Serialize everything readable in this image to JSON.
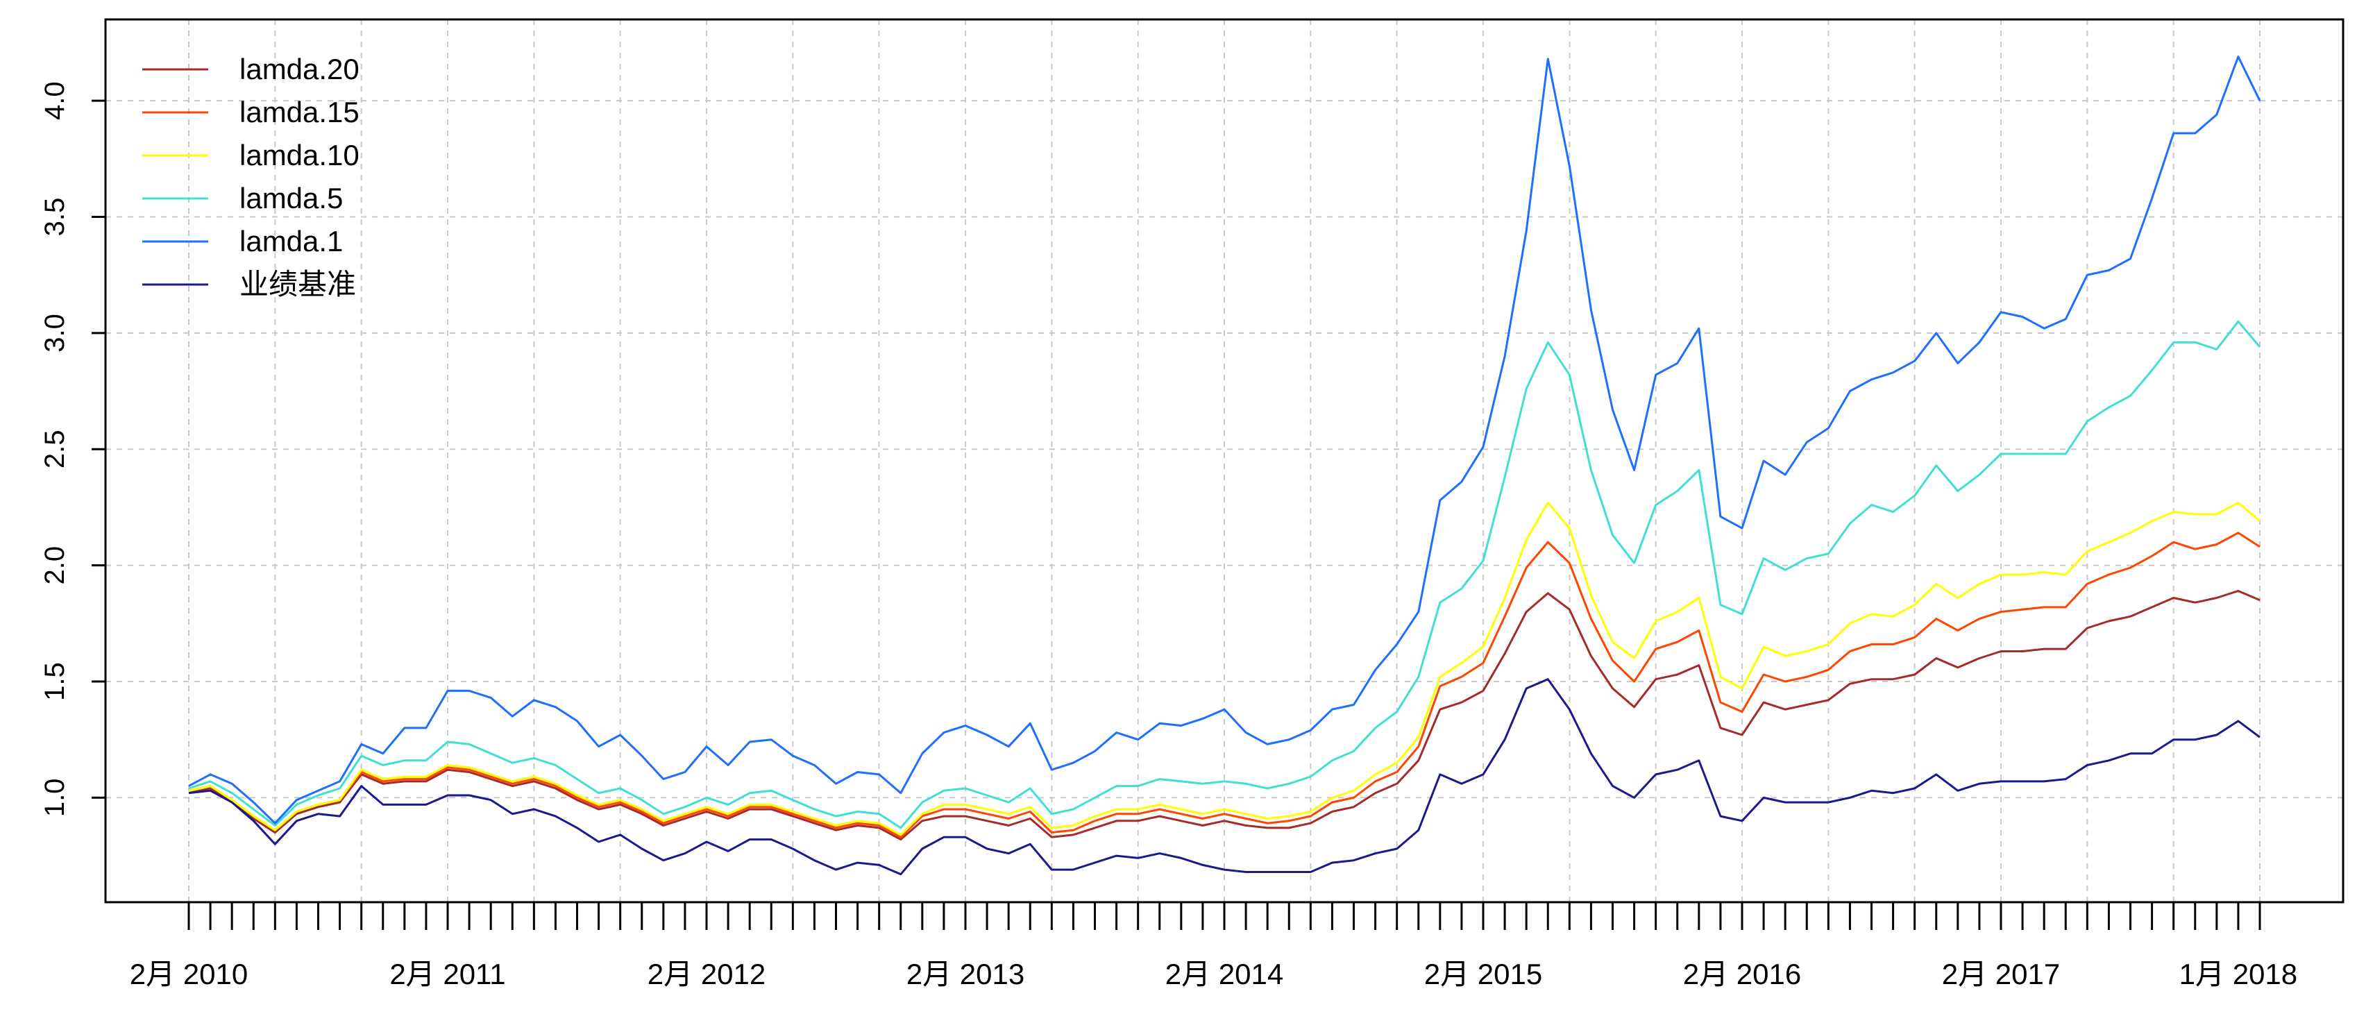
{
  "chart_data": {
    "type": "line",
    "title": "",
    "xlabel": "",
    "ylabel": "",
    "ylim": [
      0.55,
      4.35
    ],
    "y_ticks": [
      1.0,
      1.5,
      2.0,
      2.5,
      3.0,
      3.5,
      4.0
    ],
    "y_tick_labels": [
      "1.0",
      "1.5",
      "2.0",
      "2.5",
      "3.0",
      "3.5",
      "4.0"
    ],
    "x_tick_labels": [
      {
        "label": "2月 2010",
        "index": 0
      },
      {
        "label": "2月 2011",
        "index": 12
      },
      {
        "label": "2月 2012",
        "index": 24
      },
      {
        "label": "2月 2013",
        "index": 36
      },
      {
        "label": "2月 2014",
        "index": 48
      },
      {
        "label": "2月 2015",
        "index": 60
      },
      {
        "label": "2月 2016",
        "index": 72
      },
      {
        "label": "2月 2017",
        "index": 84
      },
      {
        "label": "1月 2018",
        "index": 95
      }
    ],
    "n_points": 97,
    "grid": true,
    "legend_position": "top-left",
    "series": [
      {
        "name": "lamda.20",
        "color": "#A52A2A",
        "values": [
          1.02,
          1.04,
          0.98,
          0.91,
          0.85,
          0.93,
          0.96,
          0.98,
          1.1,
          1.06,
          1.07,
          1.07,
          1.12,
          1.11,
          1.08,
          1.05,
          1.07,
          1.04,
          0.99,
          0.95,
          0.97,
          0.93,
          0.88,
          0.91,
          0.94,
          0.91,
          0.95,
          0.95,
          0.92,
          0.89,
          0.86,
          0.88,
          0.87,
          0.82,
          0.9,
          0.92,
          0.92,
          0.9,
          0.88,
          0.91,
          0.83,
          0.84,
          0.87,
          0.9,
          0.9,
          0.92,
          0.9,
          0.88,
          0.9,
          0.88,
          0.87,
          0.87,
          0.89,
          0.94,
          0.96,
          1.02,
          1.06,
          1.16,
          1.38,
          1.41,
          1.46,
          1.62,
          1.8,
          1.88,
          1.81,
          1.61,
          1.47,
          1.39,
          1.51,
          1.53,
          1.57,
          1.3,
          1.27,
          1.41,
          1.38,
          1.4,
          1.42,
          1.49,
          1.51,
          1.51,
          1.53,
          1.6,
          1.56,
          1.6,
          1.63,
          1.63,
          1.64,
          1.64,
          1.73,
          1.76,
          1.78,
          1.82,
          1.86,
          1.84,
          1.86,
          1.89,
          1.85
        ]
      },
      {
        "name": "lamda.15",
        "color": "#FF4500",
        "values": [
          1.03,
          1.05,
          0.99,
          0.92,
          0.86,
          0.94,
          0.97,
          0.99,
          1.11,
          1.07,
          1.08,
          1.08,
          1.13,
          1.12,
          1.09,
          1.06,
          1.08,
          1.05,
          1.0,
          0.96,
          0.98,
          0.94,
          0.89,
          0.92,
          0.95,
          0.92,
          0.96,
          0.96,
          0.93,
          0.9,
          0.87,
          0.89,
          0.88,
          0.83,
          0.92,
          0.95,
          0.95,
          0.93,
          0.91,
          0.94,
          0.85,
          0.86,
          0.9,
          0.93,
          0.93,
          0.95,
          0.93,
          0.91,
          0.93,
          0.91,
          0.89,
          0.9,
          0.92,
          0.98,
          1.0,
          1.07,
          1.11,
          1.22,
          1.48,
          1.52,
          1.58,
          1.78,
          1.99,
          2.1,
          2.01,
          1.77,
          1.59,
          1.5,
          1.64,
          1.67,
          1.72,
          1.41,
          1.37,
          1.53,
          1.5,
          1.52,
          1.55,
          1.63,
          1.66,
          1.66,
          1.69,
          1.77,
          1.72,
          1.77,
          1.8,
          1.81,
          1.82,
          1.82,
          1.92,
          1.96,
          1.99,
          2.04,
          2.1,
          2.07,
          2.09,
          2.14,
          2.08
        ]
      },
      {
        "name": "lamda.10",
        "color": "#FFFF00",
        "values": [
          1.03,
          1.05,
          0.99,
          0.92,
          0.86,
          0.94,
          0.97,
          0.99,
          1.12,
          1.08,
          1.09,
          1.09,
          1.14,
          1.13,
          1.1,
          1.07,
          1.09,
          1.06,
          1.01,
          0.97,
          0.99,
          0.95,
          0.9,
          0.93,
          0.96,
          0.93,
          0.97,
          0.97,
          0.94,
          0.91,
          0.88,
          0.9,
          0.89,
          0.84,
          0.93,
          0.97,
          0.97,
          0.95,
          0.93,
          0.96,
          0.87,
          0.88,
          0.92,
          0.95,
          0.95,
          0.97,
          0.95,
          0.93,
          0.95,
          0.93,
          0.91,
          0.92,
          0.94,
          1.0,
          1.03,
          1.1,
          1.15,
          1.26,
          1.52,
          1.58,
          1.65,
          1.86,
          2.11,
          2.27,
          2.16,
          1.87,
          1.67,
          1.6,
          1.76,
          1.8,
          1.86,
          1.52,
          1.47,
          1.65,
          1.61,
          1.63,
          1.66,
          1.75,
          1.79,
          1.78,
          1.83,
          1.92,
          1.86,
          1.92,
          1.96,
          1.96,
          1.97,
          1.96,
          2.06,
          2.1,
          2.14,
          2.19,
          2.23,
          2.22,
          2.22,
          2.27,
          2.19
        ]
      },
      {
        "name": "lamda.5",
        "color": "#40E0D0",
        "values": [
          1.04,
          1.07,
          1.02,
          0.95,
          0.88,
          0.97,
          1.01,
          1.04,
          1.18,
          1.14,
          1.16,
          1.16,
          1.24,
          1.23,
          1.19,
          1.15,
          1.17,
          1.14,
          1.08,
          1.02,
          1.04,
          0.99,
          0.93,
          0.96,
          1.0,
          0.97,
          1.02,
          1.03,
          0.99,
          0.95,
          0.92,
          0.94,
          0.93,
          0.87,
          0.98,
          1.03,
          1.04,
          1.01,
          0.98,
          1.04,
          0.93,
          0.95,
          1.0,
          1.05,
          1.05,
          1.08,
          1.07,
          1.06,
          1.07,
          1.06,
          1.04,
          1.06,
          1.09,
          1.16,
          1.2,
          1.3,
          1.37,
          1.52,
          1.84,
          1.9,
          2.02,
          2.38,
          2.76,
          2.96,
          2.82,
          2.41,
          2.13,
          2.01,
          2.26,
          2.32,
          2.41,
          1.83,
          1.79,
          2.03,
          1.98,
          2.03,
          2.05,
          2.18,
          2.26,
          2.23,
          2.3,
          2.43,
          2.32,
          2.39,
          2.48,
          2.48,
          2.48,
          2.48,
          2.62,
          2.68,
          2.73,
          2.84,
          2.96,
          2.96,
          2.93,
          3.05,
          2.94
        ]
      },
      {
        "name": "lamda.1",
        "color": "#1E6FFF",
        "values": [
          1.05,
          1.1,
          1.06,
          0.98,
          0.89,
          0.99,
          1.03,
          1.07,
          1.23,
          1.19,
          1.3,
          1.3,
          1.46,
          1.46,
          1.43,
          1.35,
          1.42,
          1.39,
          1.33,
          1.22,
          1.27,
          1.18,
          1.08,
          1.11,
          1.22,
          1.14,
          1.24,
          1.25,
          1.18,
          1.14,
          1.06,
          1.11,
          1.1,
          1.02,
          1.19,
          1.28,
          1.31,
          1.27,
          1.22,
          1.32,
          1.12,
          1.15,
          1.2,
          1.28,
          1.25,
          1.32,
          1.31,
          1.34,
          1.38,
          1.28,
          1.23,
          1.25,
          1.29,
          1.38,
          1.4,
          1.55,
          1.66,
          1.8,
          2.28,
          2.36,
          2.51,
          2.9,
          3.44,
          4.18,
          3.72,
          3.1,
          2.67,
          2.41,
          2.82,
          2.87,
          3.02,
          2.21,
          2.16,
          2.45,
          2.39,
          2.53,
          2.59,
          2.75,
          2.8,
          2.83,
          2.88,
          3.0,
          2.87,
          2.96,
          3.09,
          3.07,
          3.02,
          3.06,
          3.25,
          3.27,
          3.32,
          3.58,
          3.86,
          3.86,
          3.94,
          4.19,
          4.0
        ]
      },
      {
        "name": "业绩基准",
        "color": "#1A1A8C",
        "values": [
          1.02,
          1.03,
          0.98,
          0.9,
          0.8,
          0.9,
          0.93,
          0.92,
          1.05,
          0.97,
          0.97,
          0.97,
          1.01,
          1.01,
          0.99,
          0.93,
          0.95,
          0.92,
          0.87,
          0.81,
          0.84,
          0.78,
          0.73,
          0.76,
          0.81,
          0.77,
          0.82,
          0.82,
          0.78,
          0.73,
          0.69,
          0.72,
          0.71,
          0.67,
          0.78,
          0.83,
          0.83,
          0.78,
          0.76,
          0.8,
          0.69,
          0.69,
          0.72,
          0.75,
          0.74,
          0.76,
          0.74,
          0.71,
          0.69,
          0.68,
          0.68,
          0.68,
          0.68,
          0.72,
          0.73,
          0.76,
          0.78,
          0.86,
          1.1,
          1.06,
          1.1,
          1.25,
          1.47,
          1.51,
          1.38,
          1.19,
          1.05,
          1.0,
          1.1,
          1.12,
          1.16,
          0.92,
          0.9,
          1.0,
          0.98,
          0.98,
          0.98,
          1.0,
          1.03,
          1.02,
          1.04,
          1.1,
          1.03,
          1.06,
          1.07,
          1.07,
          1.07,
          1.08,
          1.14,
          1.16,
          1.19,
          1.19,
          1.25,
          1.25,
          1.27,
          1.33,
          1.26
        ]
      }
    ]
  }
}
